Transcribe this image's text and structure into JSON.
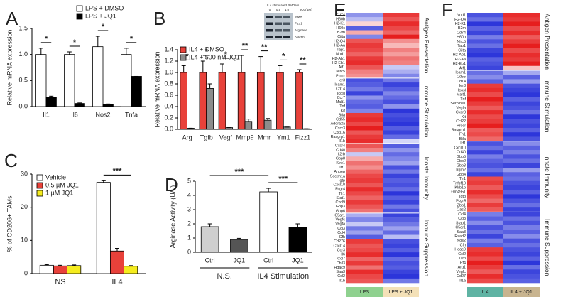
{
  "chart_data": [
    {
      "type": "bar",
      "panel": "A",
      "ylabel": "Relative mRNA expression",
      "categories": [
        "Il1",
        "Il6",
        "Nos2",
        "Tnfa"
      ],
      "series": [
        {
          "name": "LPS + DMSO",
          "color": "#ffffff",
          "values": [
            1.0,
            1.0,
            1.15,
            1.0
          ],
          "errors": [
            0.12,
            0.05,
            0.2,
            0.12
          ]
        },
        {
          "name": "LPS + JQ1",
          "color": "#000000",
          "values": [
            0.18,
            0.06,
            0.04,
            0.58
          ],
          "errors": [
            0.02,
            0.01,
            0.01,
            0
          ]
        }
      ],
      "ylim": [
        0,
        1.5
      ],
      "yticks": [
        {
          "value": 0,
          "label": "0.0"
        },
        0.5,
        {
          "value": 1,
          "label": "1.0"
        },
        1.5
      ],
      "significance": [
        "*",
        "*",
        "*",
        "*"
      ],
      "legend": "upper right"
    },
    {
      "type": "bar",
      "panel": "B",
      "ylabel": "Relative mRNA expression",
      "categories": [
        "Arg",
        "Tgfb",
        "Vegf",
        "Mmp9",
        "Mmr",
        "Ym1",
        "Fizz1"
      ],
      "series": [
        {
          "name": "IL4 + DMSO",
          "color": "#e8413a",
          "values": [
            1,
            1,
            1,
            1,
            1,
            1,
            1
          ],
          "errors": [
            0.12,
            0.2,
            0.15,
            0.3,
            0.28,
            0.12,
            0.05
          ]
        },
        {
          "name": "IL4 + 500 nM JQ1",
          "color": "#8c8c8c",
          "values": [
            0.02,
            0.72,
            0.03,
            0.14,
            0.16,
            0.04,
            0.01
          ],
          "errors": [
            0,
            0.08,
            0,
            0.04,
            0.03,
            0,
            0
          ]
        }
      ],
      "ylim": [
        0,
        1.4
      ],
      "yticks": [
        {
          "value": 0,
          "label": "0.0"
        },
        0.2,
        0.4,
        0.6,
        0.8,
        {
          "value": 1,
          "label": "1.0"
        },
        1.2,
        1.4
      ],
      "significance": [
        "*",
        "*",
        "*",
        "**",
        "**",
        "*",
        "**"
      ],
      "legend": "upper left",
      "inset": {
        "title": "IL4 stimulated BMDMs",
        "unit": "JQ1(µM)",
        "doses": [
          "0",
          "0.5",
          "1.0"
        ],
        "bands": [
          "MMR",
          "Fizz1",
          "Arginase",
          "β-actin"
        ]
      }
    },
    {
      "type": "bar",
      "panel": "C",
      "ylabel": "% of CD206+ TAMs",
      "categories": [
        "NS",
        "IL4"
      ],
      "series": [
        {
          "name": "Vehicle",
          "color": "#ffffff",
          "values": [
            2.5,
            27.5
          ],
          "errors": [
            0.2,
            0.5
          ]
        },
        {
          "name": "0.5 µM JQ1",
          "color": "#e8413a",
          "values": [
            2.3,
            6.8
          ],
          "errors": [
            0.2,
            0.8
          ]
        },
        {
          "name": "1 µM JQ1",
          "color": "#f5ec1e",
          "values": [
            2.4,
            2.2
          ],
          "errors": [
            0.2,
            0.2
          ]
        }
      ],
      "ylim": [
        0,
        30
      ],
      "yticks": [
        0,
        10,
        20,
        30
      ],
      "significance": [
        "***"
      ],
      "legend": "upper left"
    },
    {
      "type": "bar",
      "panel": "D",
      "ylabel": "Arginase Activity (U/L)",
      "categories": [
        "Ctrl",
        "JQ1",
        "Ctrl",
        "JQ1"
      ],
      "groups": [
        "N.S.",
        "IL4 Stimulation"
      ],
      "values": [
        1.8,
        0.9,
        4.25,
        1.75
      ],
      "errors": [
        0.2,
        0.08,
        0.25,
        0.25
      ],
      "colors": [
        "#cfcfcf",
        "#555555",
        "#ffffff",
        "#000000"
      ],
      "ylim": [
        0,
        5
      ],
      "yticks": [
        0,
        1,
        2,
        3,
        4,
        5
      ],
      "significance": [
        "***",
        "***"
      ]
    },
    {
      "type": "heatmap",
      "panel": "E",
      "columns": [
        "LPS",
        "LPS + JQ1"
      ],
      "column_colors": [
        "#8fd18f",
        "#f4e1b8"
      ],
      "clusters": [
        {
          "name": "Antigen Presentation",
          "color": "#a01a2a",
          "genes": [
            "Cd74",
            "H60b",
            "H2-K1",
            "H60c",
            "B2m",
            "Ciita",
            "H2-Q4",
            "H2-Aa",
            "Tap1",
            "Nod1",
            "H2-Ab1",
            "H2-Eb1",
            "Aif1",
            "Nlrc5",
            "Procr"
          ],
          "values": [
            [
              -0.8,
              1.4
            ],
            [
              -0.5,
              1.2
            ],
            [
              0.3,
              1.5
            ],
            [
              -1.2,
              1.3
            ],
            [
              0.6,
              1.1
            ],
            [
              -0.9,
              1.6
            ],
            [
              1.2,
              0.8
            ],
            [
              1.4,
              0.5
            ],
            [
              1.3,
              0.9
            ],
            [
              1.1,
              0.7
            ],
            [
              1.4,
              1.0
            ],
            [
              1.5,
              0.9
            ],
            [
              1.2,
              -0.4
            ],
            [
              0.9,
              -0.6
            ],
            [
              0.8,
              -0.9
            ]
          ]
        },
        {
          "name": "Immune Stimulation",
          "color": "#2a9a5a",
          "genes": [
            "Ier3",
            "Icam1",
            "Cd14",
            "Icosl",
            "Ccr7",
            "Malt1",
            "Tnf",
            "Kit",
            "Btla",
            "Cd55",
            "Adora2a",
            "Cxcr3",
            "Cxcl16",
            "Rasgrp1",
            "Il1b"
          ],
          "values": [
            [
              -1.3,
              -1.0
            ],
            [
              -1.2,
              -1.4
            ],
            [
              -1.0,
              -1.2
            ],
            [
              -1.4,
              -0.9
            ],
            [
              -0.8,
              -1.1
            ],
            [
              -1.1,
              -1.3
            ],
            [
              -1.2,
              -0.8
            ],
            [
              -0.9,
              -1.5
            ],
            [
              1.4,
              -1.3
            ],
            [
              1.5,
              -1.4
            ],
            [
              1.3,
              -1.5
            ],
            [
              1.6,
              -1.2
            ],
            [
              1.2,
              -1.4
            ],
            [
              1.4,
              -1.1
            ],
            [
              1.5,
              -0.3
            ]
          ]
        },
        {
          "name": "Innate Immunity",
          "color": "#2a6aa0",
          "genes": [
            "Cxcr4",
            "Cd40",
            "Il2rb",
            "Gbp8",
            "Klre1",
            "Irf1",
            "Anpep",
            "Sectm1a",
            "Igtp",
            "Cxcl10",
            "Fcgr4",
            "Tlr1",
            "Stat1",
            "Cxcl9",
            "Gbp3",
            "Gbp6"
          ],
          "values": [
            [
              1.2,
              -1.2
            ],
            [
              0.9,
              -0.8
            ],
            [
              -0.4,
              -1.1
            ],
            [
              0.6,
              -0.9
            ],
            [
              1.0,
              -0.7
            ],
            [
              0.8,
              -1.3
            ],
            [
              1.1,
              -1.0
            ],
            [
              1.3,
              -1.4
            ],
            [
              1.4,
              -1.2
            ],
            [
              1.2,
              -1.3
            ],
            [
              1.5,
              -1.1
            ],
            [
              1.3,
              -1.5
            ],
            [
              1.1,
              -1.2
            ],
            [
              1.4,
              -1.4
            ],
            [
              1.2,
              -1.0
            ],
            [
              1.0,
              -1.3
            ]
          ]
        },
        {
          "name": "Immune Suppression",
          "color": "#8a4a2a",
          "genes": [
            "C5ar1",
            "Vegfc",
            "Vegfa",
            "Ccl3",
            "Ccl4",
            "Cfh",
            "Cd276",
            "Cxcl14",
            "Ccr3",
            "Il6",
            "Ccl7",
            "Chil3",
            "Hdac9",
            "Saa3",
            "Ccl2",
            "Il1b"
          ],
          "values": [
            [
              -0.6,
              -1.4
            ],
            [
              -0.9,
              -1.2
            ],
            [
              -0.4,
              -1.0
            ],
            [
              -1.0,
              -0.7
            ],
            [
              -0.7,
              -1.1
            ],
            [
              -1.2,
              -0.5
            ],
            [
              1.4,
              -1.3
            ],
            [
              1.2,
              -1.4
            ],
            [
              1.3,
              -1.2
            ],
            [
              1.5,
              -1.5
            ],
            [
              1.1,
              -1.1
            ],
            [
              1.4,
              -1.3
            ],
            [
              1.0,
              -1.2
            ],
            [
              1.5,
              -1.4
            ],
            [
              1.3,
              -1.5
            ],
            [
              1.2,
              -1.0
            ]
          ]
        }
      ]
    },
    {
      "type": "heatmap",
      "panel": "F",
      "columns": [
        "IL4",
        "IL4 + JQ1"
      ],
      "column_colors": [
        "#5fb3a3",
        "#c8b48f"
      ],
      "clusters": [
        {
          "name": "Antigen Presentation",
          "color": "#a01a2a",
          "genes": [
            "Nod1",
            "H2-Q4",
            "H2-K1",
            "B2m",
            "Cd74",
            "H60b",
            "Nlrc5",
            "Tap1",
            "Ciita",
            "H2-Ab1",
            "H2-Aa",
            "H2-Eb1",
            "Aif1"
          ],
          "values": [
            [
              -1.2,
              1.4
            ],
            [
              -1.0,
              1.3
            ],
            [
              -1.4,
              1.5
            ],
            [
              -1.1,
              1.2
            ],
            [
              -1.3,
              1.4
            ],
            [
              -0.9,
              1.1
            ],
            [
              -1.2,
              1.3
            ],
            [
              -1.0,
              1.5
            ],
            [
              -1.3,
              1.2
            ],
            [
              -1.4,
              1.4
            ],
            [
              -1.1,
              1.3
            ],
            [
              -1.2,
              1.5
            ],
            [
              -1.3,
              0.4
            ]
          ]
        },
        {
          "name": "Immune Stimulation",
          "color": "#2a9a5a",
          "genes": [
            "Icam1",
            "Cd55",
            "Cd14",
            "Ier3",
            "Icosl",
            "Malt1",
            "Tnf",
            "Serpine1",
            "Vegfa",
            "Cxcr3",
            "Kit",
            "Ccl22",
            "Procr",
            "Rasgrp1",
            "Fn1",
            "Btla"
          ],
          "values": [
            [
              -1.0,
              -0.6
            ],
            [
              -0.8,
              -1.1
            ],
            [
              -1.1,
              -0.7
            ],
            [
              1.3,
              -1.2
            ],
            [
              1.4,
              -1.3
            ],
            [
              1.2,
              -1.4
            ],
            [
              1.5,
              -1.1
            ],
            [
              1.3,
              -1.3
            ],
            [
              1.1,
              -1.2
            ],
            [
              1.4,
              -1.0
            ],
            [
              1.2,
              -1.4
            ],
            [
              1.3,
              -1.2
            ],
            [
              1.5,
              -1.3
            ],
            [
              1.1,
              -1.1
            ],
            [
              1.2,
              -1.4
            ],
            [
              1.0,
              -1.2
            ]
          ]
        },
        {
          "name": "Innate Immunity",
          "color": "#2a6aa0",
          "genes": [
            "Irf1",
            "Cxcl10",
            "Cd40",
            "Gbp5",
            "Gbp2",
            "Gbp3",
            "Irgm2",
            "Gbp4",
            "Tlr1",
            "Tnfsf10",
            "Klrb1b",
            "Gm4951",
            "Igtp",
            "Fcgr4",
            "Zbp1",
            "Oas2"
          ],
          "values": [
            [
              -1.2,
              -0.8
            ],
            [
              -1.0,
              -1.1
            ],
            [
              -1.3,
              -0.9
            ],
            [
              -0.9,
              -1.2
            ],
            [
              -1.1,
              -1.0
            ],
            [
              -1.2,
              -1.3
            ],
            [
              -1.0,
              -0.7
            ],
            [
              -1.3,
              -1.1
            ],
            [
              1.2,
              -1.0
            ],
            [
              1.3,
              -1.2
            ],
            [
              1.1,
              -1.3
            ],
            [
              1.4,
              -1.1
            ],
            [
              1.2,
              -1.4
            ],
            [
              1.0,
              -1.2
            ],
            [
              1.3,
              -1.0
            ],
            [
              1.1,
              -1.3
            ]
          ]
        },
        {
          "name": "Immune Suppression",
          "color": "#8a4a2a",
          "genes": [
            "Ccl4",
            "Ccl3",
            "Stab1",
            "C5ar1",
            "Saa3",
            "Rsad2",
            "Nos2",
            "Cfh",
            "Hdac9",
            "Ccl2",
            "Il1rn",
            "Pf4",
            "Arg1",
            "Vegfc",
            "Cd27",
            "Il1a"
          ],
          "values": [
            [
              -0.9,
              -1.3
            ],
            [
              -1.1,
              -1.0
            ],
            [
              -0.8,
              -1.2
            ],
            [
              -1.2,
              -0.9
            ],
            [
              -1.0,
              -1.1
            ],
            [
              -1.3,
              -0.8
            ],
            [
              -0.9,
              -1.2
            ],
            [
              -1.1,
              -1.0
            ],
            [
              1.3,
              -1.2
            ],
            [
              1.4,
              -1.3
            ],
            [
              1.2,
              -1.1
            ],
            [
              1.5,
              -1.4
            ],
            [
              1.3,
              -1.0
            ],
            [
              1.1,
              -1.3
            ],
            [
              1.4,
              -1.2
            ],
            [
              1.2,
              -1.1
            ]
          ]
        }
      ]
    }
  ]
}
